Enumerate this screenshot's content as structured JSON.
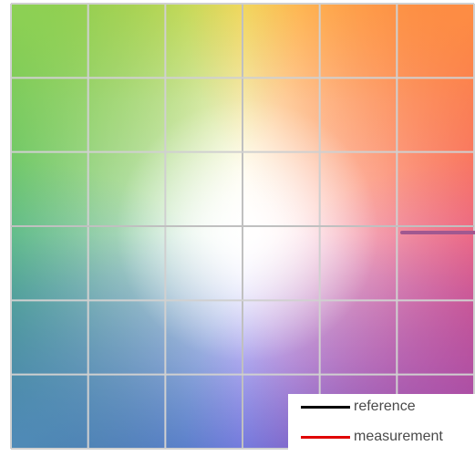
{
  "legend": {
    "items": [
      {
        "label": "reference",
        "color": "#000000"
      },
      {
        "label": "measurement",
        "color": "#e00000"
      }
    ]
  },
  "colors": {
    "grid_line": "#d0d0d0",
    "grid_line_center": "#c0c0c0",
    "marker": "#a05890"
  },
  "grid": {
    "columns": 6,
    "rows": 6
  }
}
